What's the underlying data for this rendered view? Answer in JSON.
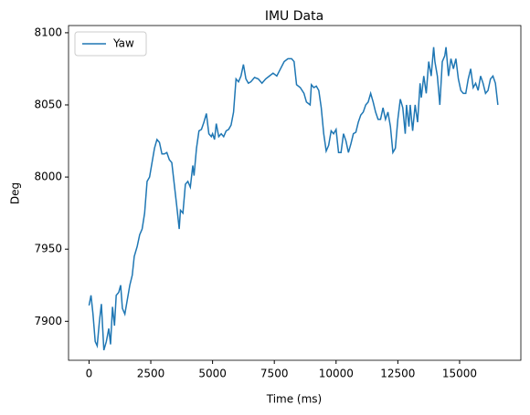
{
  "chart_data": {
    "type": "line",
    "title": "IMU Data",
    "x_label": "Time (ms)",
    "y_label": "Deg",
    "legend": "upper left",
    "x": [
      0,
      80,
      160,
      250,
      330,
      420,
      500,
      600,
      700,
      800,
      870,
      950,
      1030,
      1100,
      1200,
      1280,
      1350,
      1450,
      1550,
      1650,
      1750,
      1830,
      1950,
      2050,
      2150,
      2250,
      2350,
      2450,
      2550,
      2650,
      2750,
      2850,
      2950,
      3050,
      3150,
      3250,
      3350,
      3450,
      3550,
      3650,
      3700,
      3800,
      3900,
      4000,
      4100,
      4200,
      4250,
      4350,
      4450,
      4550,
      4650,
      4750,
      4850,
      4950,
      5000,
      5080,
      5150,
      5250,
      5350,
      5450,
      5550,
      5650,
      5750,
      5850,
      5950,
      6050,
      6150,
      6250,
      6350,
      6450,
      6550,
      6700,
      6850,
      7000,
      7150,
      7300,
      7450,
      7600,
      7750,
      7900,
      8050,
      8200,
      8300,
      8400,
      8550,
      8700,
      8800,
      8950,
      9000,
      9100,
      9200,
      9300,
      9400,
      9500,
      9600,
      9700,
      9800,
      9900,
      10000,
      10100,
      10200,
      10300,
      10400,
      10500,
      10600,
      10700,
      10800,
      10900,
      11000,
      11100,
      11200,
      11300,
      11400,
      11500,
      11600,
      11700,
      11800,
      11900,
      12000,
      12100,
      12200,
      12300,
      12400,
      12500,
      12600,
      12700,
      12800,
      12850,
      12950,
      13000,
      13100,
      13200,
      13300,
      13400,
      13450,
      13550,
      13650,
      13750,
      13850,
      13950,
      14000,
      14100,
      14200,
      14300,
      14400,
      14450,
      14550,
      14650,
      14750,
      14850,
      14950,
      15050,
      15150,
      15250,
      15350,
      15450,
      15550,
      15650,
      15750,
      15850,
      15950,
      16050,
      16150,
      16250,
      16350,
      16450,
      16550
    ],
    "series": [
      {
        "name": "Yaw",
        "color": "#1f77b4",
        "values": [
          7911,
          7918,
          7905,
          7886,
          7883,
          7900,
          7912,
          7880,
          7886,
          7895,
          7884,
          7910,
          7897,
          7918,
          7920,
          7925,
          7909,
          7905,
          7915,
          7925,
          7932,
          7945,
          7952,
          7960,
          7964,
          7975,
          7997,
          8000,
          8010,
          8020,
          8026,
          8024,
          8016,
          8016,
          8017,
          8012,
          8010,
          7995,
          7980,
          7964,
          7977,
          7975,
          7995,
          7997,
          7993,
          8008,
          8001,
          8020,
          8032,
          8033,
          8038,
          8044,
          8030,
          8028,
          8030,
          8026,
          8037,
          8028,
          8030,
          8028,
          8032,
          8033,
          8036,
          8045,
          8068,
          8066,
          8070,
          8078,
          8068,
          8065,
          8066,
          8069,
          8068,
          8065,
          8068,
          8070,
          8072,
          8070,
          8075,
          8080,
          8082,
          8082,
          8080,
          8064,
          8062,
          8058,
          8052,
          8050,
          8064,
          8062,
          8063,
          8060,
          8048,
          8030,
          8018,
          8022,
          8032,
          8030,
          8033,
          8017,
          8017,
          8030,
          8025,
          8017,
          8023,
          8030,
          8031,
          8038,
          8043,
          8045,
          8050,
          8052,
          8058,
          8052,
          8045,
          8040,
          8040,
          8048,
          8040,
          8045,
          8035,
          8017,
          8020,
          8040,
          8054,
          8048,
          8030,
          8050,
          8035,
          8050,
          8032,
          8050,
          8038,
          8065,
          8055,
          8070,
          8058,
          8080,
          8070,
          8090,
          8080,
          8070,
          8050,
          8080,
          8084,
          8090,
          8070,
          8082,
          8075,
          8082,
          8068,
          8060,
          8058,
          8058,
          8068,
          8075,
          8062,
          8065,
          8060,
          8070,
          8065,
          8058,
          8060,
          8068,
          8070,
          8065,
          8050
        ]
      }
    ],
    "xlim": [
      -830,
      17480
    ],
    "ylim": [
      7873,
      8105
    ],
    "xticks": [
      0,
      2500,
      5000,
      7500,
      10000,
      12500,
      15000
    ],
    "yticks": [
      7900,
      7950,
      8000,
      8050,
      8100
    ]
  }
}
